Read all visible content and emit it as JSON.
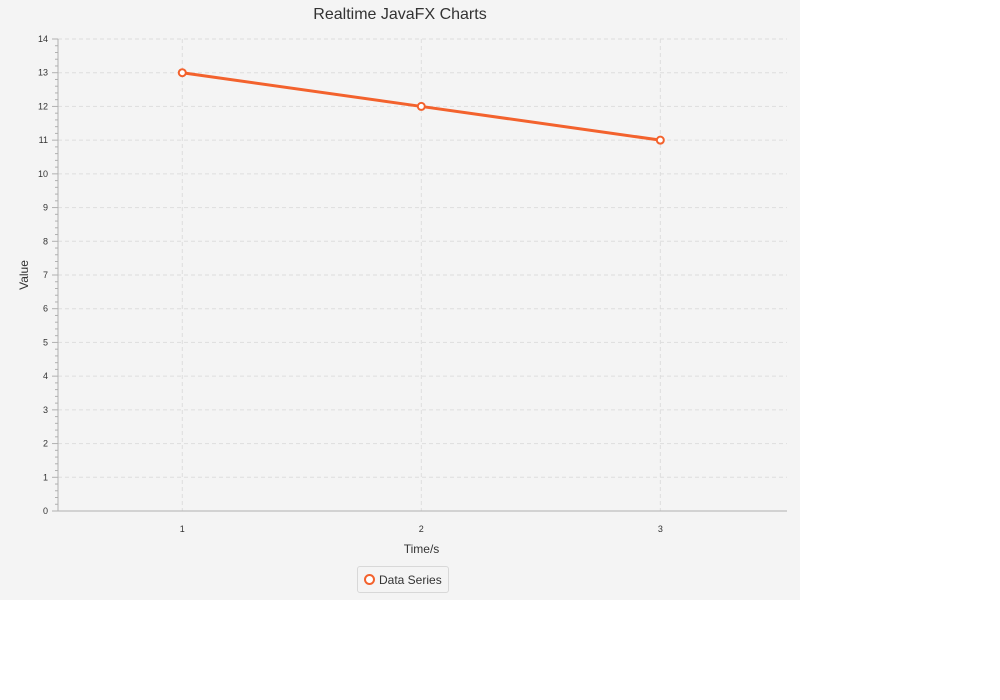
{
  "colors": {
    "background": "#f4f4f4",
    "series": "#f3622d",
    "grid": "#dddddd",
    "axis": "#b0b0b0"
  },
  "chart_data": {
    "type": "line",
    "title": "Realtime JavaFX Charts",
    "xlabel": "Time/s",
    "ylabel": "Value",
    "x": [
      1,
      2,
      3
    ],
    "series": [
      {
        "name": "Data Series",
        "values": [
          13,
          12,
          11
        ]
      }
    ],
    "xlim": [
      0.48,
      3.53
    ],
    "ylim": [
      0,
      14
    ],
    "xticks": [
      1,
      2,
      3
    ],
    "yticks": [
      0,
      1,
      2,
      3,
      4,
      5,
      6,
      7,
      8,
      9,
      10,
      11,
      12,
      13,
      14
    ],
    "grid": true,
    "legend_position": "bottom"
  }
}
